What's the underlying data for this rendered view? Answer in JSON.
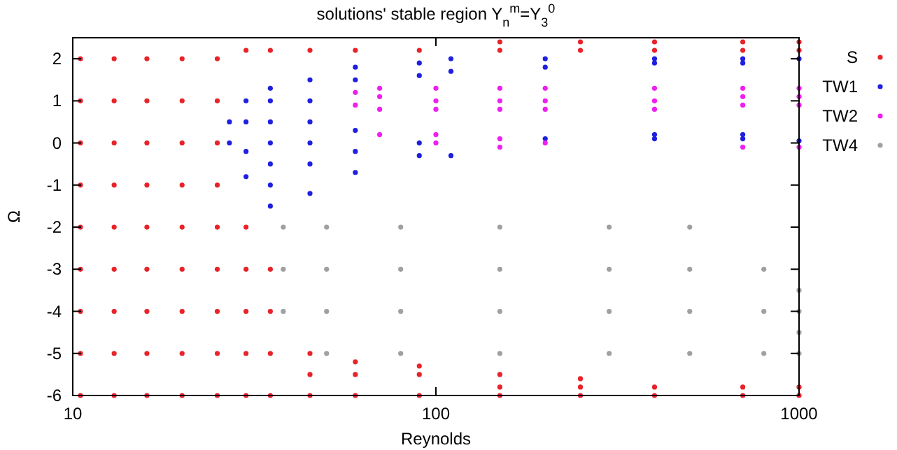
{
  "chart_data": {
    "type": "scatter",
    "title": "solutions' stable region  Y$_{n}$$^{m}$=Y$_{3}$$^{0}$",
    "xlabel": "Reynolds",
    "ylabel": "Ω",
    "log": "x",
    "xlim": [
      10,
      1000
    ],
    "xticks": [
      10,
      100,
      1000
    ],
    "ylim": [
      -6,
      2.5
    ],
    "yticks": [
      -6,
      -5,
      -4,
      -3,
      -2,
      -1,
      0,
      1,
      2
    ],
    "legend": "top right",
    "marker": "circle",
    "grid": false,
    "series": [
      {
        "name": "S",
        "color": "#e8232a",
        "x": [
          10.5,
          10.5,
          10.5,
          10.5,
          10.5,
          10.5,
          10.5,
          10.5,
          10.5,
          13,
          13,
          13,
          13,
          13,
          13,
          13,
          13,
          13,
          16,
          16,
          16,
          16,
          16,
          16,
          16,
          16,
          16,
          20,
          20,
          20,
          20,
          20,
          20,
          20,
          20,
          20,
          25,
          25,
          25,
          25,
          25,
          25,
          25,
          25,
          25,
          30,
          30,
          30,
          30,
          30,
          30,
          35,
          35,
          35,
          35,
          35,
          45,
          45,
          45,
          45,
          60,
          60,
          60,
          60,
          90,
          90,
          90,
          90,
          150,
          150,
          150,
          150,
          150,
          250,
          250,
          250,
          250,
          250,
          400,
          400,
          400,
          400,
          700,
          700,
          700,
          700,
          1000,
          1000,
          1000,
          1000
        ],
        "values": [
          -6,
          -5,
          -4,
          -3,
          -2,
          -1,
          0,
          1,
          2,
          -6,
          -5,
          -4,
          -3,
          -2,
          -1,
          0,
          1,
          2,
          -6,
          -5,
          -4,
          -3,
          -2,
          -1,
          0,
          1,
          2,
          -6,
          -5,
          -4,
          -3,
          -2,
          -1,
          0,
          1,
          2,
          -6,
          -5,
          -4,
          -3,
          -2,
          -1,
          0,
          1,
          2,
          -6,
          -5,
          -4,
          -3,
          -2,
          2.2,
          -6,
          -5,
          -4,
          -3,
          2.2,
          -6,
          -5.5,
          -5,
          2.2,
          -6,
          -5.5,
          -5.2,
          2.2,
          -6,
          -5.5,
          -5.3,
          2.2,
          -6,
          -5.8,
          -5.5,
          2.2,
          2.4,
          -6,
          -5.8,
          -5.6,
          2.2,
          2.4,
          -6,
          -5.8,
          2.2,
          2.4,
          -6,
          -5.8,
          2.2,
          2.4,
          -6,
          -5.8,
          2.2,
          2.4
        ]
      },
      {
        "name": "TW1",
        "color": "#1f1fe0",
        "x": [
          27,
          27,
          30,
          30,
          30,
          30,
          35,
          35,
          35,
          35,
          35,
          35,
          35,
          45,
          45,
          45,
          45,
          45,
          45,
          60,
          60,
          60,
          60,
          60,
          90,
          90,
          90,
          90,
          110,
          110,
          110,
          200,
          200,
          200,
          400,
          400,
          400,
          400,
          700,
          700,
          700,
          700,
          1000,
          1000
        ],
        "values": [
          0,
          0.5,
          -0.8,
          -0.2,
          0.5,
          1,
          -1.5,
          -1,
          -0.5,
          0,
          0.5,
          1,
          1.3,
          -1.2,
          -0.5,
          0,
          0.5,
          1,
          1.5,
          -0.7,
          -0.2,
          0.3,
          1.5,
          1.8,
          -0.3,
          0,
          1.6,
          1.9,
          -0.3,
          1.7,
          2,
          0.1,
          1.8,
          2,
          0.1,
          0.2,
          1.9,
          2,
          0.1,
          0.2,
          1.9,
          2,
          0.05,
          2
        ]
      },
      {
        "name": "TW2",
        "color": "#f01ef0",
        "x": [
          60,
          60,
          70,
          70,
          70,
          70,
          100,
          100,
          100,
          100,
          100,
          150,
          150,
          150,
          150,
          150,
          200,
          200,
          200,
          200,
          400,
          400,
          400,
          700,
          700,
          700,
          700,
          1000,
          1000,
          1000,
          1000
        ],
        "values": [
          0.9,
          1.2,
          0.2,
          0.8,
          1.1,
          1.3,
          0,
          0.2,
          0.8,
          1,
          1.3,
          -0.1,
          0.1,
          0.8,
          1,
          1.3,
          0,
          0.8,
          1,
          1.3,
          0.8,
          1,
          1.3,
          -0.1,
          0.9,
          1.1,
          1.3,
          -0.1,
          0.9,
          1.1,
          1.3
        ]
      },
      {
        "name": "TW4",
        "color": "#a0a0a0",
        "x": [
          38,
          38,
          38,
          50,
          50,
          50,
          50,
          80,
          80,
          80,
          80,
          150,
          150,
          150,
          150,
          300,
          300,
          300,
          300,
          500,
          500,
          500,
          500,
          800,
          800,
          800,
          1000,
          1000,
          1000,
          1000
        ],
        "values": [
          -2,
          -3,
          -4,
          -2,
          -3,
          -4,
          -5,
          -2,
          -3,
          -4,
          -5,
          -2,
          -3,
          -4,
          -5,
          -2,
          -3,
          -4,
          -5,
          -2,
          -3,
          -4,
          -5,
          -3,
          -4,
          -5,
          -3.5,
          -4,
          -4.5,
          -5
        ]
      }
    ]
  }
}
